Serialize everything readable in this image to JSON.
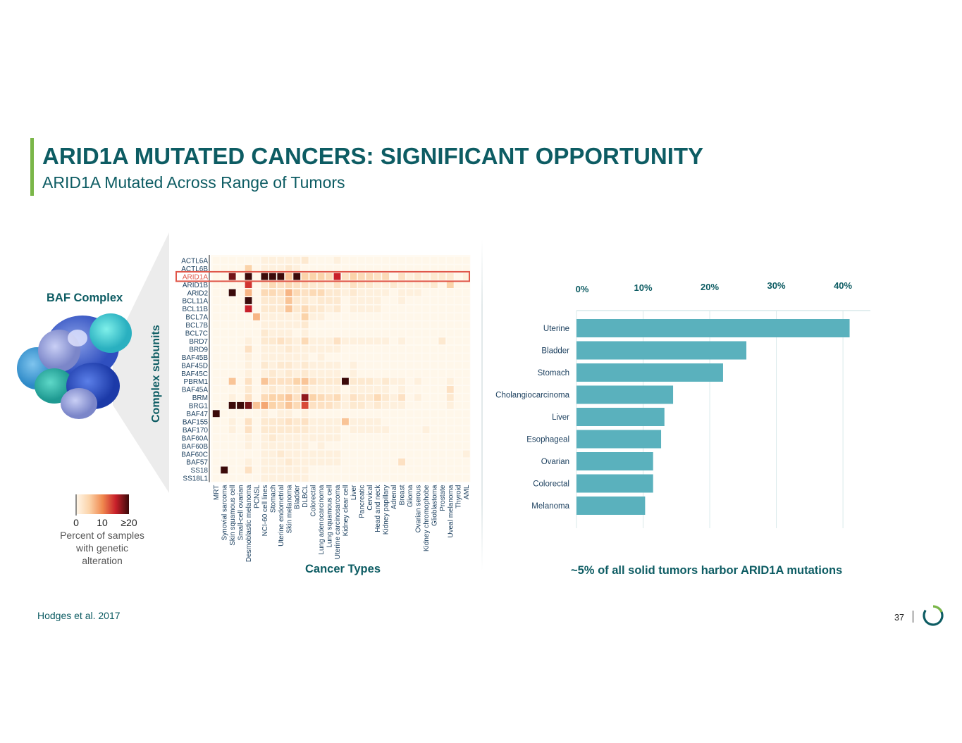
{
  "header": {
    "title": "ARID1A MUTATED CANCERS: SIGNIFICANT OPPORTUNITY",
    "subtitle": "ARID1A Mutated Across Range of Tumors"
  },
  "left_panel": {
    "complex_label": "BAF Complex",
    "y_axis_title": "Complex subunits",
    "x_axis_title": "Cancer Types",
    "legend": {
      "tick_labels": [
        "0",
        "10",
        "≥20"
      ],
      "caption_lines": [
        "Percent of samples",
        "with genetic",
        "alteration"
      ],
      "colors": [
        "#fff7ea",
        "#fbd3a9",
        "#f0894f",
        "#c8202a",
        "#3b0a0a"
      ]
    },
    "highlight_row": "ARID1A",
    "highlight_color": "#e0574a"
  },
  "right_panel": {
    "footnote": "~5% of all solid tumors harbor ARID1A mutations"
  },
  "footer": {
    "source": "Hodges et al. 2017",
    "page_number": "37"
  },
  "colors": {
    "brand": "#0d5c63",
    "accent": "#7ab648",
    "bar": "#5ab1bd"
  },
  "chart_data": [
    {
      "type": "heatmap",
      "title": "",
      "ylabel": "Complex subunits",
      "xlabel": "Cancer Types",
      "rows": [
        "ACTL6A",
        "ACTL6B",
        "ARID1A",
        "ARID1B",
        "ARID2",
        "BCL11A",
        "BCL11B",
        "BCL7A",
        "BCL7B",
        "BCL7C",
        "BRD7",
        "BRD9",
        "BAF45B",
        "BAF45D",
        "BAF45C",
        "PBRM1",
        "BAF45A",
        "BRM",
        "BRG1",
        "BAF47",
        "BAF155",
        "BAF170",
        "BAF60A",
        "BAF60B",
        "BAF60C",
        "BAF57",
        "SS18",
        "SS18L1"
      ],
      "columns": [
        "MRT",
        "Synovial sarcoma",
        "Skin squamous cell",
        "Small-cell ovarian",
        "Desmoblastic melanoma",
        "PCNSL",
        "NCI-60 cell lines",
        "Stomach",
        "Uterine endometrial",
        "Skin melanoma",
        "Bladder",
        "DLBCL",
        "Colorectal",
        "Lung adenocarcinoma",
        "Lung squamous cell",
        "Uterine carcinosarcoma",
        "Kidney clear cell",
        "Liver",
        "Pancreatic",
        "Cervical",
        "Head and neck",
        "Kidney papillary",
        "Adrenal",
        "Breast",
        "Glioma",
        "Ovarian serous",
        "Kidney chromophobe",
        "Glioblastoma",
        "Prostate",
        "Uveal melanoma",
        "Thyroid",
        "AML"
      ],
      "value_unit": "percent of samples with genetic alteration",
      "range": [
        0,
        20
      ],
      "values": [
        [
          0,
          0,
          0,
          0,
          0,
          0,
          1,
          1,
          1,
          1,
          1,
          2,
          0,
          0,
          0,
          1,
          0,
          0,
          0,
          0,
          0,
          0,
          0,
          0,
          0,
          0,
          0,
          0,
          0,
          0,
          0,
          0
        ],
        [
          0,
          0,
          0,
          0,
          5,
          0,
          1,
          1,
          1,
          2,
          1,
          0,
          0,
          0,
          0,
          0,
          0,
          0,
          0,
          0,
          0,
          0,
          0,
          0,
          0,
          0,
          0,
          0,
          0,
          0,
          0,
          0
        ],
        [
          0,
          0,
          18,
          0,
          20,
          0,
          20,
          20,
          20,
          6,
          20,
          5,
          5,
          5,
          4,
          15,
          3,
          5,
          4,
          4,
          3,
          4,
          0,
          3,
          1,
          2,
          1,
          2,
          2,
          2,
          0,
          1
        ],
        [
          0,
          0,
          0,
          0,
          14,
          0,
          2,
          4,
          3,
          4,
          3,
          3,
          2,
          2,
          1,
          3,
          1,
          3,
          2,
          2,
          1,
          1,
          2,
          1,
          1,
          1,
          1,
          2,
          0,
          5,
          0,
          0
        ],
        [
          0,
          0,
          20,
          0,
          7,
          0,
          4,
          4,
          3,
          7,
          4,
          3,
          4,
          4,
          2,
          2,
          1,
          2,
          1,
          1,
          1,
          1,
          0,
          1,
          1,
          1,
          0,
          0,
          0,
          0,
          0,
          0
        ],
        [
          0,
          0,
          0,
          0,
          20,
          0,
          2,
          2,
          2,
          6,
          2,
          2,
          1,
          2,
          2,
          2,
          0,
          1,
          1,
          1,
          1,
          0,
          0,
          1,
          0,
          0,
          0,
          0,
          0,
          0,
          0,
          0
        ],
        [
          0,
          0,
          0,
          0,
          15,
          0,
          2,
          2,
          2,
          6,
          2,
          4,
          2,
          2,
          1,
          2,
          0,
          1,
          1,
          1,
          1,
          0,
          0,
          0,
          0,
          0,
          0,
          0,
          0,
          0,
          0,
          0
        ],
        [
          0,
          0,
          0,
          0,
          0,
          7,
          1,
          1,
          1,
          1,
          1,
          5,
          1,
          1,
          0,
          0,
          0,
          0,
          0,
          0,
          0,
          0,
          0,
          0,
          0,
          0,
          0,
          0,
          0,
          0,
          0,
          0
        ],
        [
          0,
          0,
          0,
          0,
          0,
          0,
          1,
          1,
          1,
          1,
          1,
          2,
          0,
          0,
          0,
          0,
          0,
          0,
          0,
          0,
          0,
          0,
          0,
          0,
          0,
          0,
          0,
          0,
          0,
          0,
          0,
          0
        ],
        [
          0,
          0,
          0,
          0,
          0,
          0,
          2,
          1,
          1,
          1,
          0,
          1,
          0,
          0,
          0,
          0,
          0,
          0,
          0,
          0,
          0,
          0,
          0,
          0,
          0,
          0,
          0,
          0,
          0,
          0,
          0,
          0
        ],
        [
          0,
          0,
          0,
          0,
          1,
          0,
          2,
          2,
          3,
          2,
          1,
          4,
          1,
          1,
          1,
          3,
          1,
          1,
          1,
          1,
          1,
          1,
          0,
          1,
          0,
          0,
          0,
          0,
          2,
          0,
          0,
          0
        ],
        [
          0,
          0,
          0,
          0,
          3,
          0,
          1,
          1,
          1,
          2,
          1,
          1,
          1,
          1,
          1,
          1,
          0,
          0,
          0,
          0,
          0,
          0,
          0,
          0,
          0,
          0,
          0,
          0,
          0,
          0,
          0,
          0
        ],
        [
          0,
          0,
          0,
          0,
          1,
          0,
          1,
          1,
          1,
          1,
          1,
          1,
          0,
          1,
          0,
          0,
          0,
          0,
          0,
          0,
          0,
          0,
          0,
          0,
          0,
          0,
          0,
          0,
          0,
          0,
          0,
          0
        ],
        [
          0,
          0,
          0,
          0,
          1,
          0,
          2,
          1,
          2,
          2,
          1,
          2,
          1,
          1,
          1,
          1,
          0,
          1,
          0,
          0,
          0,
          0,
          0,
          0,
          0,
          0,
          0,
          0,
          0,
          0,
          0,
          0
        ],
        [
          0,
          0,
          0,
          0,
          1,
          0,
          1,
          2,
          1,
          2,
          1,
          2,
          1,
          1,
          1,
          1,
          0,
          1,
          0,
          0,
          0,
          0,
          0,
          0,
          0,
          0,
          0,
          0,
          0,
          0,
          0,
          0
        ],
        [
          0,
          0,
          6,
          0,
          3,
          0,
          6,
          3,
          3,
          3,
          5,
          6,
          3,
          2,
          2,
          2,
          20,
          2,
          2,
          2,
          1,
          2,
          1,
          1,
          0,
          1,
          0,
          0,
          0,
          1,
          0,
          0
        ],
        [
          0,
          0,
          0,
          0,
          2,
          0,
          1,
          2,
          1,
          2,
          2,
          3,
          1,
          1,
          1,
          1,
          0,
          1,
          1,
          1,
          1,
          1,
          0,
          1,
          0,
          0,
          0,
          0,
          0,
          3,
          0,
          0
        ],
        [
          0,
          0,
          1,
          0,
          3,
          0,
          4,
          5,
          5,
          6,
          3,
          17,
          5,
          4,
          3,
          4,
          1,
          3,
          2,
          2,
          4,
          2,
          1,
          3,
          0,
          1,
          0,
          0,
          0,
          2,
          0,
          0
        ],
        [
          0,
          0,
          20,
          20,
          18,
          6,
          8,
          5,
          4,
          6,
          4,
          13,
          3,
          3,
          3,
          2,
          1,
          2,
          2,
          1,
          2,
          1,
          1,
          1,
          0,
          0,
          0,
          0,
          0,
          1,
          0,
          0
        ],
        [
          20,
          0,
          0,
          0,
          0,
          0,
          1,
          0,
          1,
          1,
          0,
          1,
          0,
          0,
          0,
          0,
          0,
          0,
          0,
          0,
          0,
          0,
          0,
          0,
          0,
          0,
          0,
          0,
          0,
          0,
          0,
          0
        ],
        [
          0,
          0,
          1,
          0,
          3,
          0,
          2,
          2,
          2,
          3,
          2,
          3,
          1,
          1,
          1,
          1,
          6,
          1,
          1,
          1,
          1,
          0,
          0,
          0,
          0,
          0,
          0,
          0,
          0,
          0,
          0,
          0
        ],
        [
          0,
          0,
          1,
          0,
          3,
          0,
          2,
          2,
          2,
          2,
          2,
          2,
          1,
          1,
          1,
          1,
          0,
          1,
          1,
          1,
          1,
          1,
          0,
          0,
          0,
          0,
          1,
          0,
          0,
          0,
          0,
          0
        ],
        [
          0,
          0,
          0,
          0,
          1,
          0,
          1,
          2,
          1,
          1,
          1,
          1,
          1,
          1,
          1,
          1,
          0,
          0,
          0,
          0,
          0,
          0,
          0,
          0,
          0,
          0,
          0,
          0,
          0,
          0,
          0,
          0
        ],
        [
          0,
          0,
          0,
          0,
          1,
          0,
          1,
          1,
          1,
          1,
          1,
          1,
          0,
          1,
          0,
          0,
          0,
          0,
          0,
          0,
          0,
          0,
          0,
          0,
          0,
          0,
          0,
          0,
          0,
          0,
          0,
          0
        ],
        [
          0,
          0,
          0,
          0,
          0,
          0,
          1,
          1,
          2,
          1,
          1,
          1,
          1,
          1,
          1,
          1,
          0,
          0,
          0,
          0,
          0,
          0,
          0,
          0,
          0,
          0,
          0,
          0,
          0,
          0,
          0,
          1
        ],
        [
          0,
          0,
          0,
          0,
          1,
          0,
          1,
          1,
          1,
          2,
          1,
          1,
          1,
          1,
          1,
          1,
          0,
          0,
          0,
          0,
          0,
          0,
          0,
          3,
          0,
          0,
          0,
          0,
          0,
          0,
          0,
          0
        ],
        [
          0,
          20,
          0,
          0,
          3,
          0,
          1,
          1,
          1,
          1,
          1,
          1,
          0,
          0,
          0,
          0,
          0,
          0,
          0,
          0,
          0,
          0,
          0,
          0,
          0,
          0,
          0,
          0,
          0,
          0,
          0,
          0
        ],
        [
          0,
          0,
          0,
          0,
          0,
          0,
          1,
          1,
          1,
          1,
          1,
          1,
          0,
          0,
          0,
          0,
          0,
          0,
          0,
          0,
          0,
          0,
          0,
          0,
          0,
          0,
          0,
          0,
          0,
          0,
          0,
          0
        ]
      ]
    },
    {
      "type": "bar",
      "orientation": "horizontal",
      "title": "",
      "categories": [
        "Uterine",
        "Bladder",
        "Stomach",
        "Cholangiocarcinoma",
        "Liver",
        "Esophageal",
        "Ovarian",
        "Colorectal",
        "Melanoma"
      ],
      "values": [
        41,
        25.5,
        22,
        14.5,
        13.2,
        12.7,
        11.5,
        11.5,
        10.3
      ],
      "xticks": [
        "0%",
        "10%",
        "20%",
        "30%",
        "40%"
      ],
      "xlim": [
        0,
        42
      ],
      "grid": true,
      "xlabel": "",
      "ylabel": ""
    }
  ]
}
